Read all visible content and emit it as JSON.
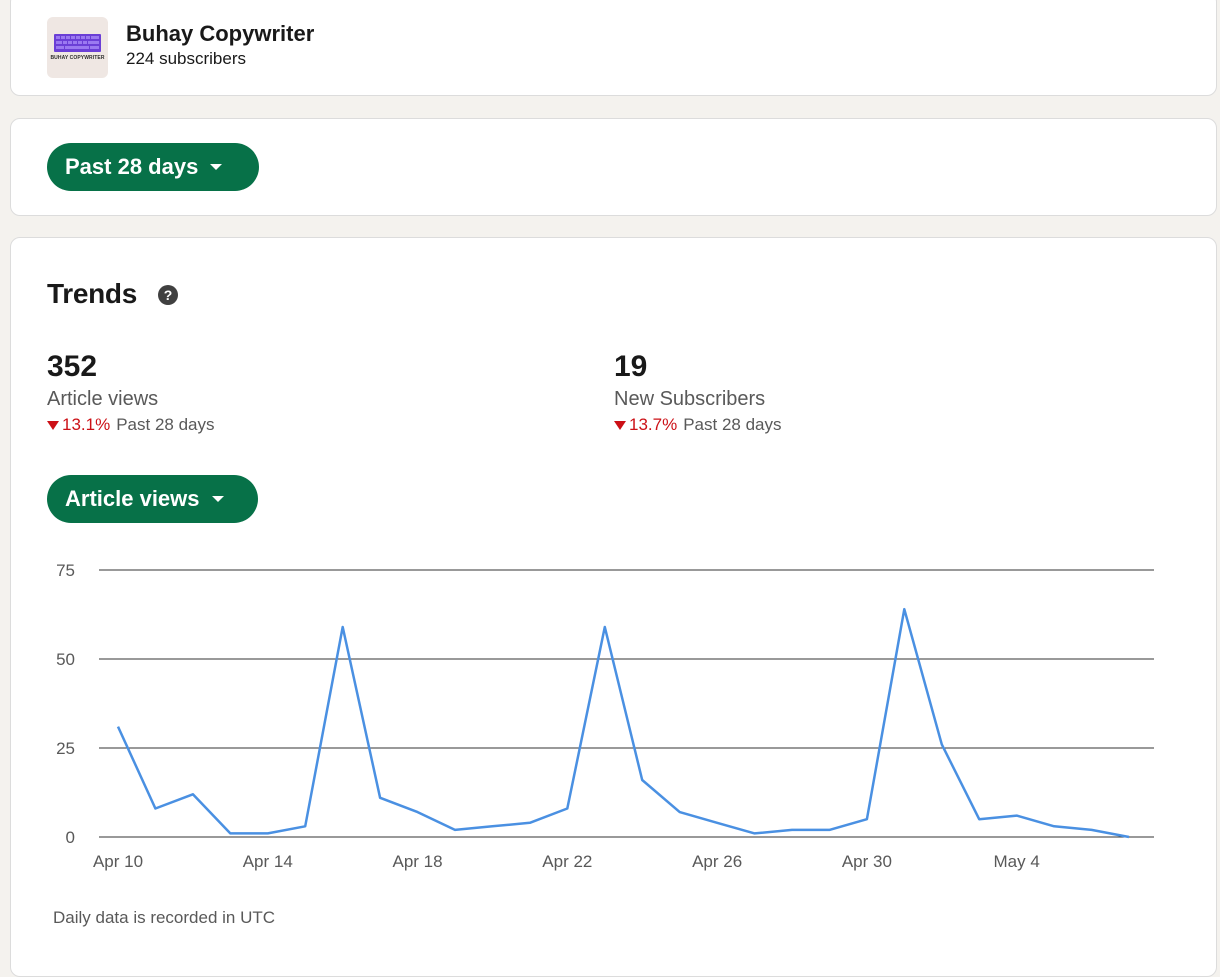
{
  "header": {
    "logo_text": "BUHAY COPYWRITER",
    "name": "Buhay Copywriter",
    "subscribers": "224 subscribers"
  },
  "range_filter": {
    "label": "Past 28 days"
  },
  "trends": {
    "title": "Trends",
    "stats": [
      {
        "value": "352",
        "label": "Article views",
        "change": "13.1%",
        "period": "Past 28 days"
      },
      {
        "value": "19",
        "label": "New Subscribers",
        "change": "13.7%",
        "period": "Past 28 days"
      }
    ],
    "metric_selector": {
      "label": "Article views"
    },
    "footnote": "Daily data is recorded in UTC"
  },
  "colors": {
    "accent_green": "#077148",
    "negative_red": "#cc1016",
    "line_blue": "#4a90e2"
  },
  "icons": {
    "help": "question-circle-icon",
    "caret": "caret-down-icon",
    "down": "triangle-down-icon",
    "logo": "keyboard-logo"
  },
  "chart_data": {
    "type": "line",
    "title": "",
    "xlabel": "",
    "ylabel": "",
    "ylim": [
      0,
      75
    ],
    "yticks": [
      0,
      25,
      50,
      75
    ],
    "xticks": [
      "Apr 10",
      "Apr 14",
      "Apr 18",
      "Apr 22",
      "Apr 26",
      "Apr 30",
      "May 4"
    ],
    "grid": true,
    "x": [
      "Apr 10",
      "Apr 11",
      "Apr 12",
      "Apr 13",
      "Apr 14",
      "Apr 15",
      "Apr 16",
      "Apr 17",
      "Apr 18",
      "Apr 19",
      "Apr 20",
      "Apr 21",
      "Apr 22",
      "Apr 23",
      "Apr 24",
      "Apr 25",
      "Apr 26",
      "Apr 27",
      "Apr 28",
      "Apr 29",
      "Apr 30",
      "May 1",
      "May 2",
      "May 3",
      "May 4",
      "May 5",
      "May 6",
      "May 7"
    ],
    "series": [
      {
        "values": [
          31,
          8,
          12,
          1,
          1,
          3,
          59,
          11,
          7,
          2,
          3,
          4,
          8,
          59,
          16,
          7,
          4,
          1,
          2,
          2,
          5,
          64,
          26,
          5,
          6,
          3,
          2,
          0
        ]
      }
    ]
  }
}
